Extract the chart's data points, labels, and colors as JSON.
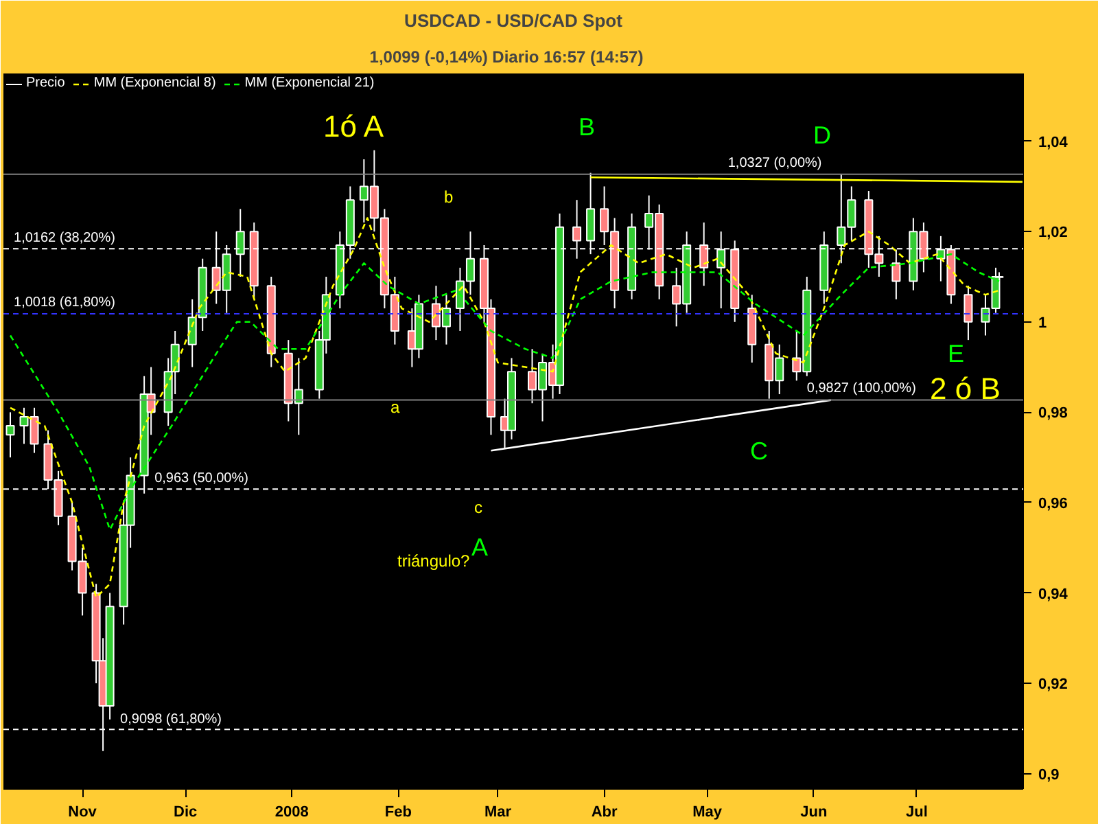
{
  "chart_data": {
    "type": "candlestick",
    "title": "USDCAD - USD/CAD Spot",
    "subtitle": "1,0099 (-0,14%)   Diario  16:57 (14:57)",
    "xlim": [
      "2007-10-09",
      "2008-08-01"
    ],
    "ylim": [
      0.8966,
      1.055
    ],
    "xticks": [
      {
        "value": "2007-11-01",
        "label": "Nov"
      },
      {
        "value": "2007-12-01",
        "label": "Dic"
      },
      {
        "value": "2008-01-01",
        "label": "2008"
      },
      {
        "value": "2008-02-01",
        "label": "Feb"
      },
      {
        "value": "2008-03-01",
        "label": "Mar"
      },
      {
        "value": "2008-04-01",
        "label": "Abr"
      },
      {
        "value": "2008-05-01",
        "label": "May"
      },
      {
        "value": "2008-06-01",
        "label": "Jun"
      },
      {
        "value": "2008-07-01",
        "label": "Jul"
      }
    ],
    "yticks": [
      {
        "value": 0.9,
        "label": "0,9"
      },
      {
        "value": 0.92,
        "label": "0,92"
      },
      {
        "value": 0.94,
        "label": "0,94"
      },
      {
        "value": 0.96,
        "label": "0,96"
      },
      {
        "value": 0.98,
        "label": "0,98"
      },
      {
        "value": 1.0,
        "label": "1"
      },
      {
        "value": 1.02,
        "label": "1,02"
      },
      {
        "value": 1.04,
        "label": "1,04"
      }
    ],
    "grid": false,
    "legend": "top left",
    "marker": "none",
    "series": [
      {
        "name": "Precio",
        "color": "#ffffff",
        "x": [
          "2007-10-11",
          "2007-10-15",
          "2007-10-18",
          "2007-10-22",
          "2007-10-25",
          "2007-10-29",
          "2007-11-01",
          "2007-11-05",
          "2007-11-07",
          "2007-11-09",
          "2007-11-13",
          "2007-11-15",
          "2007-11-19",
          "2007-11-21",
          "2007-11-26",
          "2007-11-28",
          "2007-12-03",
          "2007-12-06",
          "2007-12-10",
          "2007-12-13",
          "2007-12-17",
          "2007-12-21",
          "2007-12-26",
          "2007-12-31",
          "2008-01-03",
          "2008-01-09",
          "2008-01-11",
          "2008-01-15",
          "2008-01-18",
          "2008-01-22",
          "2008-01-25",
          "2008-01-28",
          "2008-01-31",
          "2008-02-05",
          "2008-02-07",
          "2008-02-12",
          "2008-02-15",
          "2008-02-19",
          "2008-02-22",
          "2008-02-26",
          "2008-02-28",
          "2008-03-03",
          "2008-03-05",
          "2008-03-11",
          "2008-03-14",
          "2008-03-17",
          "2008-03-19",
          "2008-03-24",
          "2008-03-28",
          "2008-04-01",
          "2008-04-04",
          "2008-04-09",
          "2008-04-14",
          "2008-04-17",
          "2008-04-22",
          "2008-04-25",
          "2008-04-30",
          "2008-05-05",
          "2008-05-09",
          "2008-05-14",
          "2008-05-19",
          "2008-05-22",
          "2008-05-27",
          "2008-05-30",
          "2008-06-04",
          "2008-06-09",
          "2008-06-12",
          "2008-06-17",
          "2008-06-20",
          "2008-06-25",
          "2008-06-30",
          "2008-07-03",
          "2008-07-08",
          "2008-07-11",
          "2008-07-16",
          "2008-07-21",
          "2008-07-24",
          "2008-07-25"
        ],
        "ohlc": [
          [
            0.975,
            0.98,
            0.97,
            0.977
          ],
          [
            0.977,
            0.981,
            0.973,
            0.979
          ],
          [
            0.979,
            0.981,
            0.971,
            0.973
          ],
          [
            0.973,
            0.976,
            0.963,
            0.965
          ],
          [
            0.965,
            0.967,
            0.955,
            0.957
          ],
          [
            0.957,
            0.96,
            0.945,
            0.947
          ],
          [
            0.947,
            0.95,
            0.935,
            0.94
          ],
          [
            0.94,
            0.942,
            0.92,
            0.925
          ],
          [
            0.925,
            0.93,
            0.905,
            0.915
          ],
          [
            0.915,
            0.94,
            0.912,
            0.937
          ],
          [
            0.937,
            0.96,
            0.933,
            0.955
          ],
          [
            0.955,
            0.97,
            0.95,
            0.966
          ],
          [
            0.966,
            0.988,
            0.962,
            0.984
          ],
          [
            0.984,
            0.99,
            0.975,
            0.98
          ],
          [
            0.98,
            0.992,
            0.977,
            0.989
          ],
          [
            0.989,
            0.998,
            0.984,
            0.995
          ],
          [
            0.995,
            1.005,
            0.99,
            1.001
          ],
          [
            1.001,
            1.014,
            0.998,
            1.012
          ],
          [
            1.012,
            1.02,
            1.004,
            1.007
          ],
          [
            1.007,
            1.017,
            1.002,
            1.015
          ],
          [
            1.015,
            1.025,
            1.01,
            1.02
          ],
          [
            1.02,
            1.022,
            1.005,
            1.008
          ],
          [
            1.008,
            1.01,
            0.99,
            0.993
          ],
          [
            0.993,
            0.996,
            0.978,
            0.982
          ],
          [
            0.982,
            0.992,
            0.975,
            0.985
          ],
          [
            0.985,
            0.998,
            0.983,
            0.996
          ],
          [
            0.996,
            1.01,
            0.993,
            1.006
          ],
          [
            1.006,
            1.02,
            1.003,
            1.017
          ],
          [
            1.017,
            1.03,
            1.014,
            1.027
          ],
          [
            1.027,
            1.036,
            1.022,
            1.03
          ],
          [
            1.03,
            1.038,
            1.02,
            1.023
          ],
          [
            1.023,
            1.025,
            1.003,
            1.006
          ],
          [
            1.006,
            1.01,
            0.995,
            0.998
          ],
          [
            0.998,
            1.003,
            0.99,
            0.994
          ],
          [
            0.994,
            1.006,
            0.992,
            1.004
          ],
          [
            1.004,
            1.008,
            0.996,
            0.999
          ],
          [
            0.999,
            1.006,
            0.995,
            1.003
          ],
          [
            1.003,
            1.012,
            0.998,
            1.009
          ],
          [
            1.009,
            1.02,
            1.006,
            1.014
          ],
          [
            1.014,
            1.017,
            1.0,
            1.003
          ],
          [
            1.003,
            1.005,
            0.975,
            0.979
          ],
          [
            0.979,
            0.983,
            0.972,
            0.976
          ],
          [
            0.976,
            0.992,
            0.974,
            0.989
          ],
          [
            0.989,
            0.994,
            0.982,
            0.985
          ],
          [
            0.985,
            0.993,
            0.978,
            0.991
          ],
          [
            0.991,
            0.995,
            0.983,
            0.986
          ],
          [
            0.986,
            1.024,
            0.984,
            1.021
          ],
          [
            1.021,
            1.027,
            1.014,
            1.018
          ],
          [
            1.018,
            1.033,
            1.015,
            1.025
          ],
          [
            1.025,
            1.03,
            1.017,
            1.02
          ],
          [
            1.02,
            1.023,
            1.003,
            1.007
          ],
          [
            1.007,
            1.024,
            1.005,
            1.021
          ],
          [
            1.021,
            1.028,
            1.016,
            1.024
          ],
          [
            1.024,
            1.026,
            1.005,
            1.008
          ],
          [
            1.008,
            1.012,
            0.999,
            1.004
          ],
          [
            1.004,
            1.02,
            1.002,
            1.017
          ],
          [
            1.017,
            1.022,
            1.008,
            1.012
          ],
          [
            1.012,
            1.02,
            1.003,
            1.016
          ],
          [
            1.016,
            1.018,
            1.0,
            1.003
          ],
          [
            1.003,
            1.006,
            0.991,
            0.995
          ],
          [
            0.995,
            0.998,
            0.983,
            0.987
          ],
          [
            0.987,
            0.995,
            0.984,
            0.992
          ],
          [
            0.992,
            0.998,
            0.987,
            0.989
          ],
          [
            0.989,
            1.01,
            0.988,
            1.007
          ],
          [
            1.007,
            1.02,
            1.004,
            1.017
          ],
          [
            1.017,
            1.0327,
            1.013,
            1.021
          ],
          [
            1.021,
            1.03,
            1.018,
            1.027
          ],
          [
            1.027,
            1.029,
            1.012,
            1.015
          ],
          [
            1.015,
            1.019,
            1.01,
            1.013
          ],
          [
            1.013,
            1.016,
            1.005,
            1.009
          ],
          [
            1.009,
            1.023,
            1.007,
            1.02
          ],
          [
            1.02,
            1.022,
            1.011,
            1.014
          ],
          [
            1.014,
            1.019,
            1.009,
            1.016
          ],
          [
            1.016,
            1.017,
            1.004,
            1.006
          ],
          [
            1.006,
            1.008,
            0.996,
            1.0
          ],
          [
            1.0,
            1.006,
            0.997,
            1.003
          ],
          [
            1.003,
            1.012,
            1.002,
            1.01
          ],
          [
            1.01,
            1.011,
            1.007,
            1.0099
          ]
        ]
      },
      {
        "name": "MM (Exponencial 8)",
        "type": "line",
        "color": "#ffff00",
        "line_style": "dashed",
        "x": [
          "2007-10-11",
          "2007-10-21",
          "2007-10-29",
          "2007-11-05",
          "2007-11-09",
          "2007-11-13",
          "2007-11-19",
          "2007-11-27",
          "2007-12-05",
          "2007-12-13",
          "2007-12-19",
          "2007-12-26",
          "2007-12-30",
          "2008-01-05",
          "2008-01-13",
          "2008-01-19",
          "2008-01-23",
          "2008-01-28",
          "2008-02-02",
          "2008-02-10",
          "2008-02-20",
          "2008-02-26",
          "2008-03-01",
          "2008-03-09",
          "2008-03-17",
          "2008-03-25",
          "2008-04-03",
          "2008-04-11",
          "2008-04-19",
          "2008-04-27",
          "2008-05-04",
          "2008-05-13",
          "2008-05-21",
          "2008-05-29",
          "2008-06-04",
          "2008-06-10",
          "2008-06-17",
          "2008-06-23",
          "2008-06-29",
          "2008-07-07",
          "2008-07-15",
          "2008-07-21",
          "2008-07-25"
        ],
        "values": [
          0.981,
          0.977,
          0.96,
          0.939,
          0.942,
          0.96,
          0.977,
          0.988,
          1.003,
          1.011,
          1.01,
          0.993,
          0.989,
          0.992,
          1.008,
          1.016,
          1.023,
          1.012,
          1.003,
          1.0,
          1.008,
          1.0,
          0.991,
          0.99,
          0.989,
          1.011,
          1.017,
          1.013,
          1.015,
          1.012,
          1.014,
          1.006,
          0.993,
          0.991,
          1.003,
          1.017,
          1.02,
          1.017,
          1.013,
          1.015,
          1.008,
          1.006,
          1.007
        ]
      },
      {
        "name": "MM (Exponencial 21)",
        "type": "line",
        "color": "#00ff00",
        "line_style": "dashed",
        "x": [
          "2007-10-11",
          "2007-10-25",
          "2007-11-03",
          "2007-11-09",
          "2007-11-15",
          "2007-11-27",
          "2007-12-10",
          "2007-12-16",
          "2007-12-20",
          "2007-12-28",
          "2008-01-05",
          "2008-01-15",
          "2008-01-22",
          "2008-01-29",
          "2008-02-07",
          "2008-02-18",
          "2008-02-28",
          "2008-03-09",
          "2008-03-17",
          "2008-03-25",
          "2008-04-03",
          "2008-04-15",
          "2008-04-23",
          "2008-05-04",
          "2008-05-15",
          "2008-05-29",
          "2008-06-09",
          "2008-06-17",
          "2008-06-29",
          "2008-07-11",
          "2008-07-19",
          "2008-07-25"
        ],
        "values": [
          0.997,
          0.98,
          0.968,
          0.954,
          0.963,
          0.977,
          0.993,
          1.0,
          1.0,
          0.994,
          0.994,
          1.006,
          1.013,
          1.008,
          1.004,
          1.007,
          0.998,
          0.994,
          0.992,
          1.005,
          1.009,
          1.011,
          1.011,
          1.011,
          1.004,
          0.997,
          1.006,
          1.012,
          1.013,
          1.015,
          1.011,
          1.009
        ]
      },
      {
        "type": "line",
        "color": "#ffff00",
        "line_style": "solid",
        "x": [
          "2008-03-28",
          "2008-08-01"
        ],
        "values": [
          1.032,
          1.031
        ]
      },
      {
        "type": "line",
        "color": "#ffffff",
        "line_style": "solid",
        "x": [
          "2008-02-28",
          "2008-06-06"
        ],
        "values": [
          0.9715,
          0.9827
        ]
      }
    ],
    "ref_lines": [
      {
        "axis": "y",
        "value": 1.0162,
        "color": "#ffffff",
        "line_style": "dashed"
      },
      {
        "axis": "y",
        "value": 0.963,
        "color": "#ffffff",
        "line_style": "dashed"
      },
      {
        "axis": "y",
        "value": 0.9098,
        "color": "#ffffff",
        "line_style": "dashed"
      },
      {
        "axis": "y",
        "value": 1.0327,
        "color": "#808080",
        "line_style": "solid"
      },
      {
        "axis": "y",
        "value": 1.0018,
        "color": "#3333ff",
        "line_style": "dashed"
      },
      {
        "axis": "y",
        "value": 0.9827,
        "color": "#808080",
        "line_style": "solid"
      }
    ],
    "annotations": [
      "B",
      "D",
      "A",
      "C",
      "E",
      "1ó A",
      "2 ó B",
      "a",
      "b",
      "c",
      "triángulo?",
      {
        "text": "1,0162 (38,20%)",
        "x": "2007-10-12",
        "y": 1.0168
      },
      {
        "text": "0,963 (50,00%)",
        "x": "2007-11-22",
        "y": 0.9636
      },
      {
        "text": "0,9098 (61,80%)",
        "x": "2007-11-12",
        "y": 0.9103
      },
      {
        "text": "1,0327 (0,00%)",
        "x": "2008-05-07",
        "y": 1.0334
      },
      {
        "text": "1,0018 (61,80%)",
        "x": "2007-10-12",
        "y": 1.0025
      },
      {
        "text": "0,9827 (100,00%)",
        "x": "2008-05-30",
        "y": 0.9836
      }
    ]
  }
}
